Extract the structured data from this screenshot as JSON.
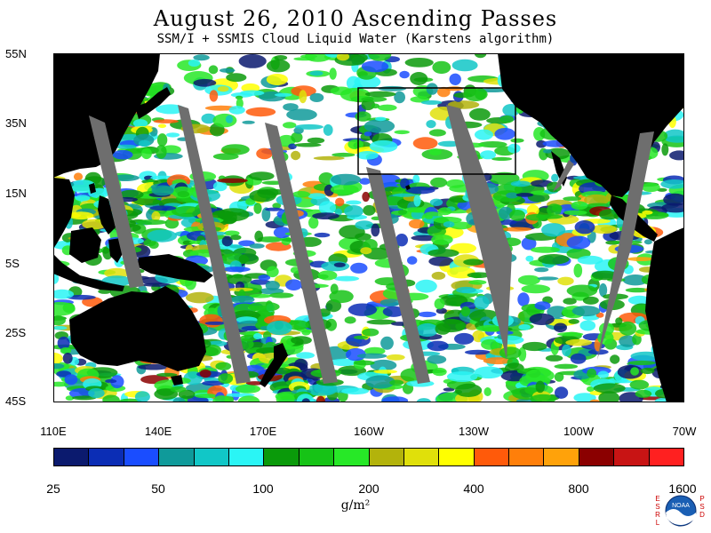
{
  "header": {
    "title": "August 26, 2010  Ascending Passes",
    "subtitle": "SSM/I + SSMIS Cloud Liquid Water (Karstens algorithm)"
  },
  "map": {
    "lat_labels": [
      "55N",
      "35N",
      "15N",
      "5S",
      "25S",
      "45S"
    ],
    "lon_labels": [
      "110E",
      "140E",
      "170E",
      "160W",
      "130W",
      "100W",
      "70W"
    ],
    "lat_range": [
      -45,
      55
    ],
    "lon_range_east": [
      110,
      290
    ],
    "box_region": {
      "lon_min_east": 196,
      "lon_max_east": 241,
      "lat_min": 20,
      "lat_max": 45
    },
    "colors": {
      "land": "#000000",
      "ocean": "#ffffff",
      "swath_gap": "#6e6e6e",
      "box": "#000000"
    }
  },
  "colorbar": {
    "colors": [
      "#0b1a6e",
      "#0b2db5",
      "#1a4dff",
      "#0f9a9a",
      "#11c7c7",
      "#2af5f5",
      "#0a9a0a",
      "#16c316",
      "#27e827",
      "#b3b30b",
      "#e0e00a",
      "#ffff00",
      "#ff5a0a",
      "#ff7f0a",
      "#ffa20a",
      "#8b0000",
      "#c81414",
      "#ff2020"
    ],
    "tick_labels": [
      "25",
      "50",
      "100",
      "200",
      "400",
      "800",
      "1600"
    ],
    "units": "g/m²"
  },
  "logo": {
    "left_letters": "ESRL",
    "right_letters": "PSD",
    "center_text": "NOAA"
  }
}
